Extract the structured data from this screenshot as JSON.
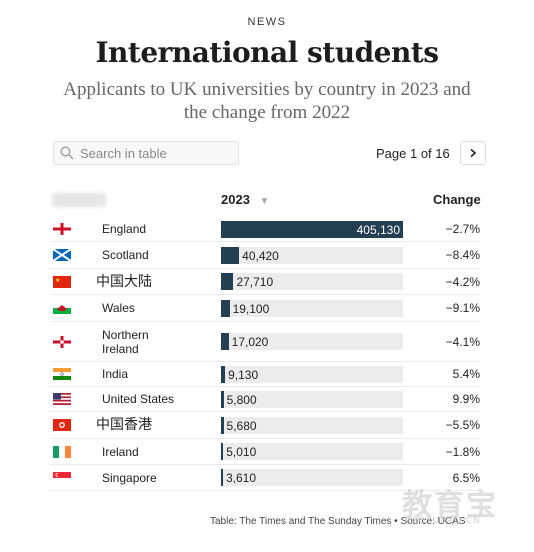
{
  "header": {
    "kicker": "NEWS",
    "title": "International students",
    "subtitle": "Applicants to UK universities by country in 2023 and the change from 2022"
  },
  "search": {
    "placeholder": "Search in table"
  },
  "pagination": {
    "text": "Page 1 of 16",
    "current": 1,
    "total": 16
  },
  "columns": {
    "country": "",
    "year": "2023",
    "change": "Change"
  },
  "chart_data": {
    "type": "table",
    "max_value": 405130,
    "rows": [
      {
        "country": "England",
        "flag": "england",
        "value": 405130,
        "value_label": "405,130",
        "change": "−2.7%"
      },
      {
        "country": "Scotland",
        "flag": "scotland",
        "value": 40420,
        "value_label": "40,420",
        "change": "−8.4%"
      },
      {
        "country": "中国大陆",
        "flag": "china",
        "value": 27710,
        "value_label": "27,710",
        "change": "−4.2%"
      },
      {
        "country": "Wales",
        "flag": "wales",
        "value": 19100,
        "value_label": "19,100",
        "change": "−9.1%"
      },
      {
        "country": "Northern Ireland",
        "flag": "northern-ireland",
        "value": 17020,
        "value_label": "17,020",
        "change": "−4.1%"
      },
      {
        "country": "India",
        "flag": "india",
        "value": 9130,
        "value_label": "9,130",
        "change": "5.4%"
      },
      {
        "country": "United States",
        "flag": "usa",
        "value": 5800,
        "value_label": "5,800",
        "change": "9.9%"
      },
      {
        "country": "中国香港",
        "flag": "hong-kong",
        "value": 5680,
        "value_label": "5,680",
        "change": "−5.5%"
      },
      {
        "country": "Ireland",
        "flag": "ireland",
        "value": 5010,
        "value_label": "5,010",
        "change": "−1.8%"
      },
      {
        "country": "Singapore",
        "flag": "singapore",
        "value": 3610,
        "value_label": "3,610",
        "change": "6.5%"
      }
    ]
  },
  "source": "Table: The Times and The Sunday Times • Source: UCAS",
  "watermark": {
    "main": "教育宝",
    "sub": "JIAOYUBAO.CN"
  },
  "colors": {
    "bar": "#243f52",
    "track": "#ececec"
  }
}
